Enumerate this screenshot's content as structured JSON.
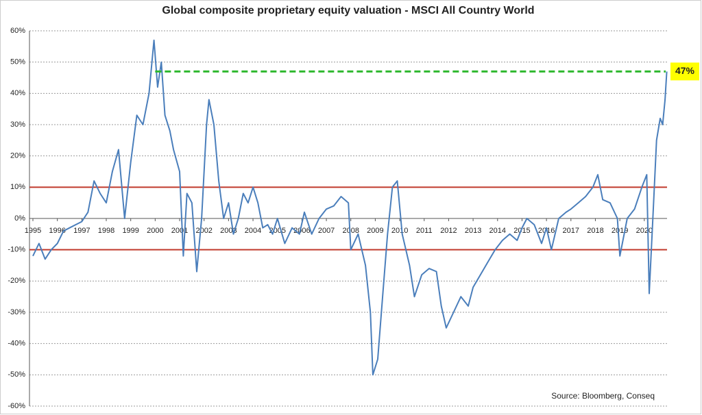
{
  "chart_data": {
    "type": "line",
    "title": "Global composite proprietary equity valuation - MSCI All Country World",
    "source": "Source: Bloomberg, Conseq",
    "x": [
      1995.0,
      1995.25,
      1995.5,
      1995.75,
      1996.0,
      1996.25,
      1996.5,
      1996.75,
      1997.0,
      1997.25,
      1997.5,
      1997.75,
      1998.0,
      1998.25,
      1998.5,
      1998.75,
      1999.0,
      1999.25,
      1999.5,
      1999.75,
      1999.95,
      2000.1,
      2000.25,
      2000.4,
      2000.6,
      2000.75,
      2001.0,
      2001.15,
      2001.3,
      2001.5,
      2001.7,
      2001.9,
      2002.1,
      2002.2,
      2002.4,
      2002.6,
      2002.8,
      2003.0,
      2003.2,
      2003.4,
      2003.6,
      2003.8,
      2004.0,
      2004.2,
      2004.4,
      2004.6,
      2004.8,
      2005.0,
      2005.3,
      2005.6,
      2005.9,
      2006.1,
      2006.4,
      2006.7,
      2007.0,
      2007.3,
      2007.6,
      2007.9,
      2008.0,
      2008.3,
      2008.6,
      2008.8,
      2008.9,
      2009.1,
      2009.3,
      2009.5,
      2009.7,
      2009.9,
      2010.1,
      2010.4,
      2010.6,
      2010.9,
      2011.2,
      2011.5,
      2011.7,
      2011.9,
      2012.2,
      2012.5,
      2012.8,
      2013.0,
      2013.3,
      2013.6,
      2013.9,
      2014.2,
      2014.5,
      2014.8,
      2015.0,
      2015.2,
      2015.5,
      2015.8,
      2016.0,
      2016.2,
      2016.5,
      2016.8,
      2017.0,
      2017.3,
      2017.6,
      2017.9,
      2018.1,
      2018.3,
      2018.6,
      2018.9,
      2019.0,
      2019.3,
      2019.6,
      2019.9,
      2020.1,
      2020.2,
      2020.35,
      2020.5,
      2020.65,
      2020.75,
      2020.85,
      2020.92
    ],
    "series": [
      {
        "color": "#4a7ebb",
        "values": [
          -12,
          -8,
          -13,
          -10,
          -8,
          -4,
          -3,
          -2,
          -1,
          2,
          12,
          8,
          5,
          15,
          22,
          0,
          18,
          33,
          30,
          40,
          57,
          42,
          50,
          33,
          28,
          22,
          15,
          -12,
          8,
          5,
          -17,
          0,
          30,
          38,
          30,
          12,
          0,
          5,
          -5,
          0,
          8,
          5,
          10,
          5,
          -3,
          -2,
          -5,
          0,
          -8,
          -3,
          -5,
          2,
          -5,
          0,
          3,
          4,
          7,
          5,
          -10,
          -5,
          -15,
          -30,
          -50,
          -45,
          -25,
          -5,
          10,
          12,
          -5,
          -15,
          -25,
          -18,
          -16,
          -17,
          -28,
          -35,
          -30,
          -25,
          -28,
          -22,
          -18,
          -14,
          -10,
          -7,
          -5,
          -7,
          -3,
          0,
          -2,
          -8,
          -3,
          -10,
          0,
          2,
          3,
          5,
          7,
          10,
          14,
          6,
          5,
          0,
          -12,
          0,
          3,
          10,
          14,
          -24,
          0,
          25,
          32,
          30,
          38,
          47
        ]
      }
    ],
    "xlim": [
      1994.86,
      2020.93
    ],
    "xticks": [
      1995,
      1996,
      1997,
      1998,
      1999,
      2000,
      2001,
      2002,
      2003,
      2004,
      2005,
      2006,
      2007,
      2008,
      2009,
      2010,
      2011,
      2012,
      2013,
      2014,
      2015,
      2016,
      2017,
      2018,
      2019,
      2020
    ],
    "ylim": [
      -60,
      60
    ],
    "yticks": [
      {
        "value": -60,
        "label": "-60%"
      },
      {
        "value": -50,
        "label": "-50%"
      },
      {
        "value": -40,
        "label": "-40%"
      },
      {
        "value": -30,
        "label": "-30%"
      },
      {
        "value": -20,
        "label": "-20%"
      },
      {
        "value": -10,
        "label": "-10%"
      },
      {
        "value": 0,
        "label": "0%"
      },
      {
        "value": 10,
        "label": "10%"
      },
      {
        "value": 20,
        "label": "20%"
      },
      {
        "value": 30,
        "label": "30%"
      },
      {
        "value": 40,
        "label": "40%"
      },
      {
        "value": 50,
        "label": "50%"
      },
      {
        "value": 60,
        "label": "60%"
      }
    ],
    "grid": true,
    "reference_lines": [
      {
        "value": 10,
        "color": "#c0392b"
      },
      {
        "value": -10,
        "color": "#c0392b"
      }
    ],
    "highlight": {
      "value": 47,
      "label": "47%",
      "x_start": 2000.0,
      "color": "#2eb82e",
      "label_background": "#ffff00"
    }
  }
}
